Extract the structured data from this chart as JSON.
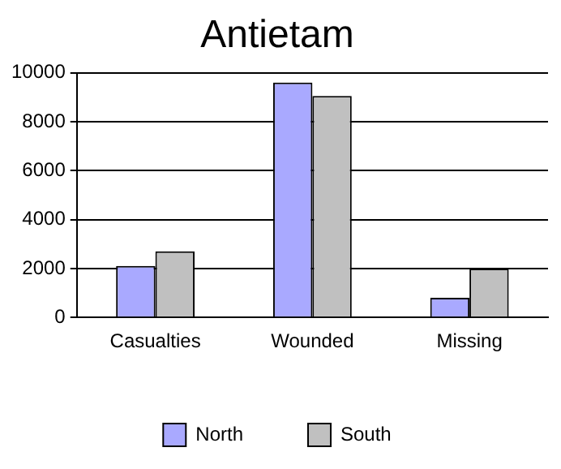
{
  "chart_data": {
    "type": "bar",
    "title": "Antietam",
    "categories": [
      "Casualties",
      "Wounded",
      "Missing"
    ],
    "series": [
      {
        "name": "North",
        "color": "#a9a9ff",
        "values": [
          2100,
          9600,
          800
        ]
      },
      {
        "name": "South",
        "color": "#c0c0c0",
        "values": [
          2700,
          9050,
          2000
        ]
      }
    ],
    "ylim": [
      0,
      10000
    ],
    "yticks": [
      0,
      2000,
      4000,
      6000,
      8000,
      10000
    ],
    "grid": "y",
    "legend": "bottom"
  }
}
